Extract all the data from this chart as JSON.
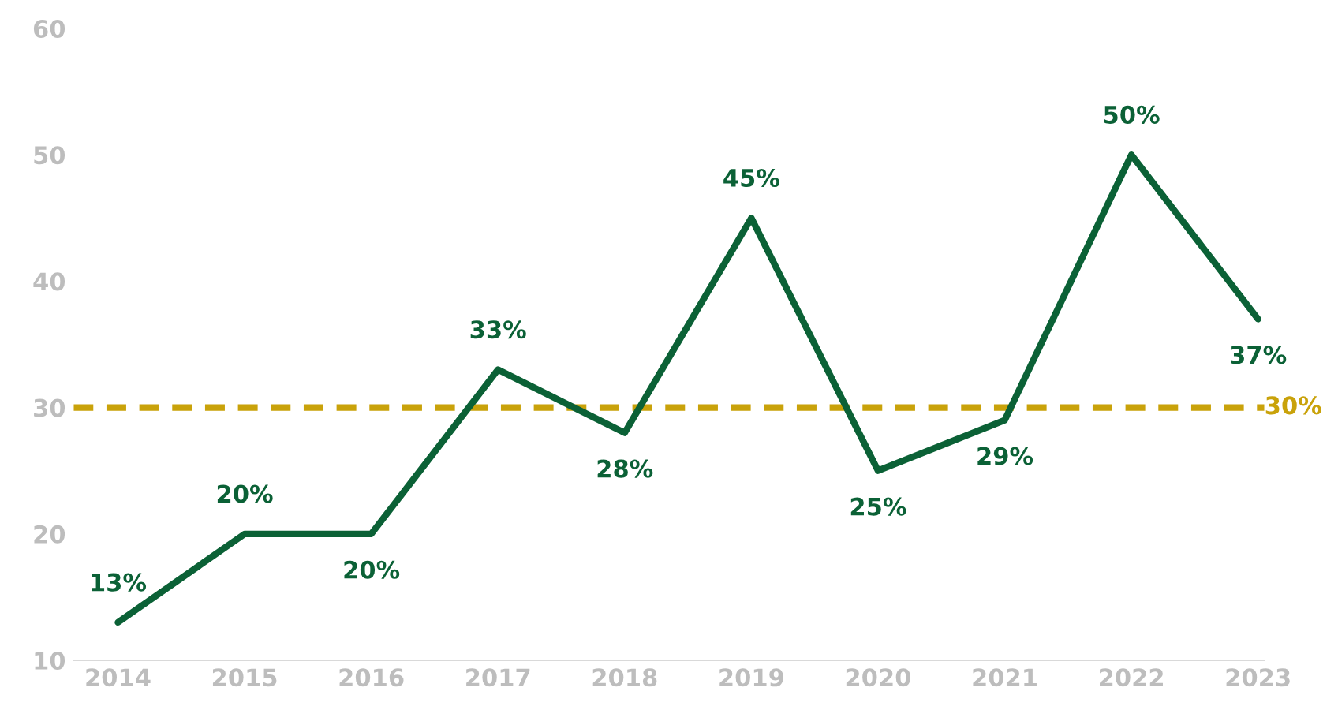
{
  "chart_data": {
    "type": "line",
    "categories": [
      "2014",
      "2015",
      "2016",
      "2017",
      "2018",
      "2019",
      "2020",
      "2021",
      "2022",
      "2023"
    ],
    "series": [
      {
        "color": "#0b6136",
        "values": [
          13,
          20,
          20,
          33,
          28,
          45,
          25,
          29,
          50,
          37
        ],
        "value_labels": [
          "13%",
          "20%",
          "20%",
          "33%",
          "28%",
          "45%",
          "25%",
          "29%",
          "50%",
          "37%"
        ]
      }
    ],
    "ylim": [
      10,
      60
    ],
    "yticks": [
      10,
      20,
      30,
      40,
      50,
      60
    ],
    "ref_lines": [
      {
        "axis": "y",
        "value": 30,
        "label": "30%",
        "color": "#c9a20a",
        "line_style": "dashed"
      }
    ],
    "grid": false,
    "legend": false,
    "marker": "none",
    "line_style": "solid"
  }
}
